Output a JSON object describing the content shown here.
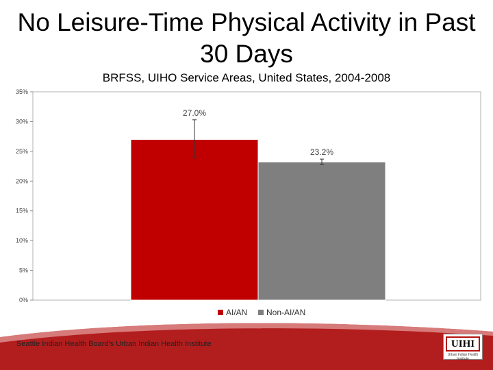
{
  "slide": {
    "title": "No Leisure-Time Physical Activity in Past 30 Days",
    "subtitle": "BRFSS, UIHO Service Areas, United States, 2004-2008",
    "footer": "Seattle Indian Health Board's Urban Indian Health Institute",
    "logo_text": "UIHI",
    "logo_caption": "Urban Indian Health Institute"
  },
  "colors": {
    "aian": "#c00000",
    "non_aian": "#7f7f7f",
    "footer_band": "#b21d1d"
  },
  "chart_data": {
    "type": "bar",
    "categories": [
      ""
    ],
    "series": [
      {
        "name": "AI/AN",
        "values": [
          27.0
        ],
        "label": "27.0%",
        "error_low": 23.9,
        "error_high": 30.3,
        "color": "#c00000"
      },
      {
        "name": "Non-AI/AN",
        "values": [
          23.2
        ],
        "label": "23.2%",
        "error_low": 22.8,
        "error_high": 23.7,
        "color": "#7f7f7f"
      }
    ],
    "ylim": [
      0,
      35
    ],
    "yticks": [
      "0%",
      "5%",
      "10%",
      "15%",
      "20%",
      "25%",
      "30%",
      "35%"
    ],
    "ytick_values": [
      0,
      5,
      10,
      15,
      20,
      25,
      30,
      35
    ],
    "grid": false,
    "legend": "bottom"
  }
}
